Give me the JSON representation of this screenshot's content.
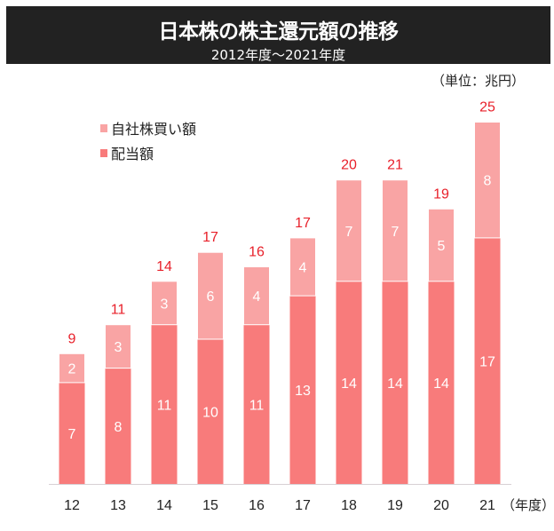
{
  "chart_data": {
    "type": "bar",
    "stacked": true,
    "title": "日本株の株主還元額の推移",
    "subtitle": "2012年度～2021年度",
    "unit_label": "（単位：兆円）",
    "xlabel_suffix": "（年度）",
    "categories": [
      "12",
      "13",
      "14",
      "15",
      "16",
      "17",
      "18",
      "19",
      "20",
      "21"
    ],
    "series": [
      {
        "name": "配当額",
        "values": [
          7,
          8,
          11,
          10,
          11,
          13,
          14,
          14,
          14,
          17
        ],
        "color": "#f87b7b"
      },
      {
        "name": "自社株買い額",
        "values": [
          2,
          3,
          3,
          6,
          4,
          4,
          7,
          7,
          5,
          8
        ],
        "color": "#f9a4a4"
      }
    ],
    "totals": [
      9,
      11,
      14,
      17,
      16,
      17,
      20,
      21,
      19,
      25
    ],
    "total_label_color": "#e8202a",
    "ylim": [
      0,
      25
    ],
    "grid": false,
    "legend_position": "top-left"
  }
}
